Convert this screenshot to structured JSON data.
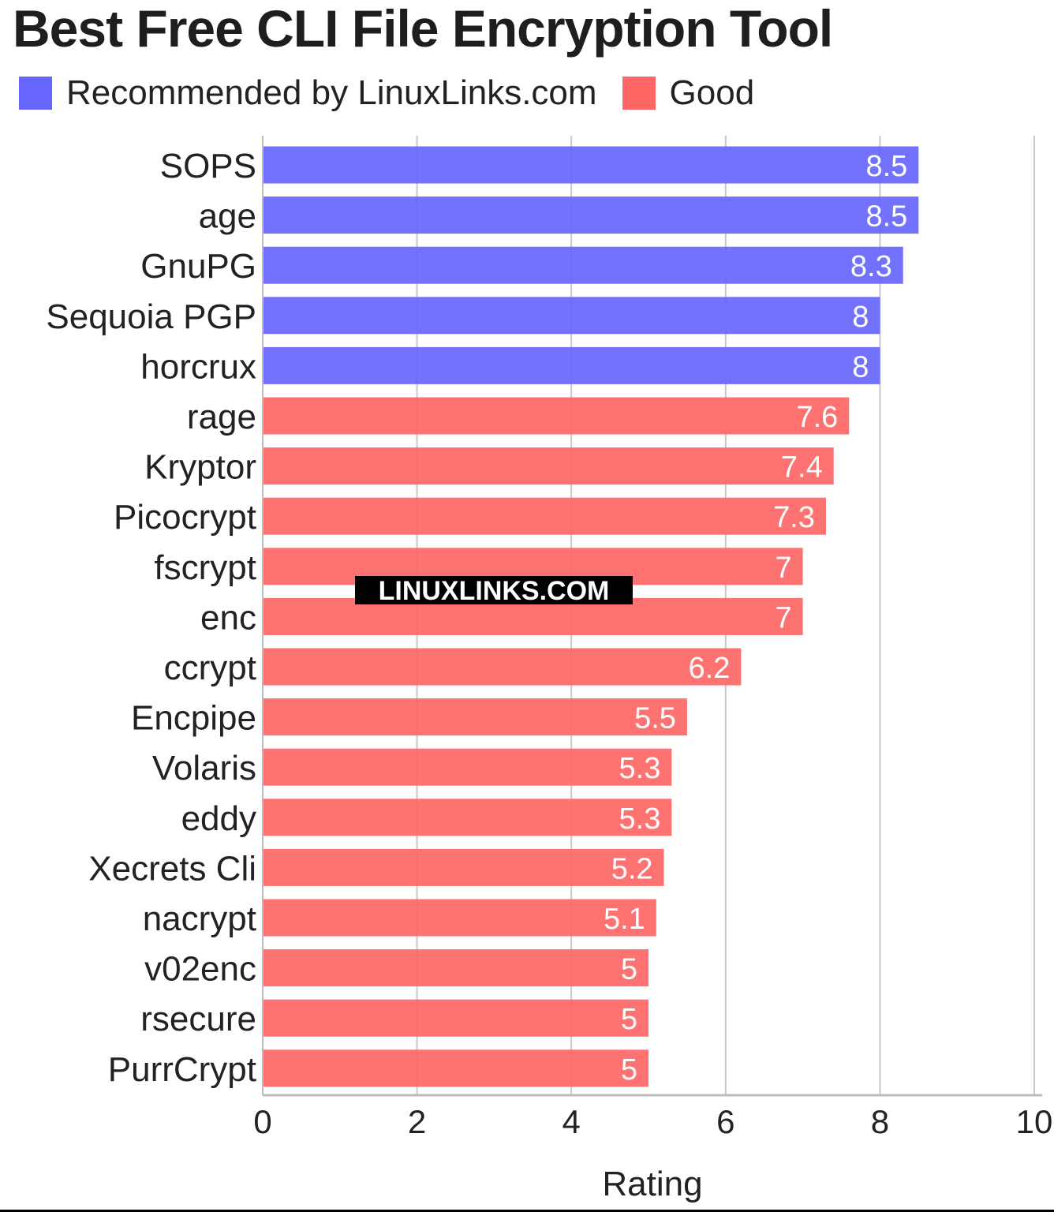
{
  "chart_data": {
    "type": "bar",
    "orientation": "horizontal",
    "title": "Best Free CLI File Encryption Tool",
    "xlabel": "Rating",
    "ylabel": "",
    "xlim": [
      0,
      10
    ],
    "xticks": [
      0,
      2,
      4,
      6,
      8,
      10
    ],
    "grid": "vertical gridlines",
    "legend_placement": "top-left",
    "legend": [
      {
        "label": "Recommended by LinuxLinks.com",
        "color": "#6666ff"
      },
      {
        "label": "Good",
        "color": "#ff6666"
      }
    ],
    "categories": [
      "SOPS",
      "age",
      "GnuPG",
      "Sequoia PGP",
      "horcrux",
      "rage",
      "Kryptor",
      "Picocrypt",
      "fscrypt",
      "enc",
      "ccrypt",
      "Encpipe",
      "Volaris",
      "eddy",
      "Xecrets Cli",
      "nacrypt",
      "v02enc",
      "rsecure",
      "PurrCrypt"
    ],
    "values": [
      8.5,
      8.5,
      8.3,
      8,
      8,
      7.6,
      7.4,
      7.3,
      7,
      7,
      6.2,
      5.5,
      5.3,
      5.3,
      5.2,
      5.1,
      5,
      5,
      5
    ],
    "groups": [
      "Recommended by LinuxLinks.com",
      "Recommended by LinuxLinks.com",
      "Recommended by LinuxLinks.com",
      "Recommended by LinuxLinks.com",
      "Recommended by LinuxLinks.com",
      "Good",
      "Good",
      "Good",
      "Good",
      "Good",
      "Good",
      "Good",
      "Good",
      "Good",
      "Good",
      "Good",
      "Good",
      "Good",
      "Good"
    ],
    "data_labels": [
      "8.5",
      "8.5",
      "8.3",
      "8",
      "8",
      "7.6",
      "7.4",
      "7.3",
      "7",
      "7",
      "6.2",
      "5.5",
      "5.3",
      "5.3",
      "5.2",
      "5.1",
      "5",
      "5",
      "5"
    ]
  },
  "watermark": "LINUXLINKS.COM"
}
